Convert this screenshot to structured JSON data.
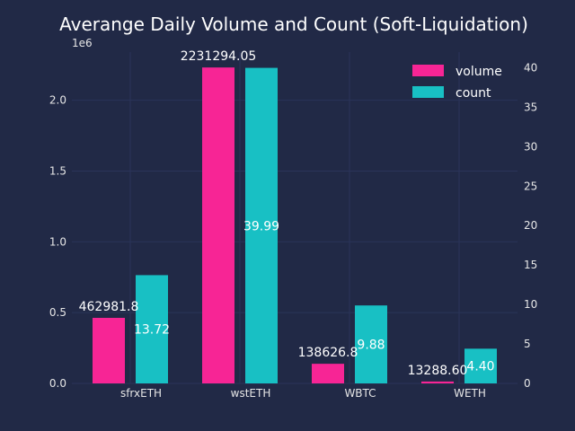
{
  "chart_data": {
    "type": "bar",
    "title": "Averange Daily Volume and Count (Soft-Liquidation)",
    "categories": [
      "sfrxETH",
      "wstETH",
      "WBTC",
      "WETH"
    ],
    "series": [
      {
        "name": "volume",
        "axis": "left",
        "color": "#F72595",
        "values": [
          462981.8,
          2231294.05,
          138626.8,
          13288.6
        ],
        "labels": [
          "462981.8",
          "2231294.05",
          "138626.8",
          "13288.60"
        ]
      },
      {
        "name": "count",
        "axis": "right",
        "color": "#18C0C4",
        "values": [
          13.72,
          39.99,
          9.88,
          4.4
        ],
        "labels": [
          "13.72",
          "39.99",
          "9.88",
          "4.40"
        ]
      }
    ],
    "y_left": {
      "ylim": [
        0,
        2340000
      ],
      "ticks": [
        0,
        500000,
        1000000,
        1500000,
        2000000
      ],
      "tick_labels": [
        "0.0",
        "0.5",
        "1.0",
        "1.5",
        "2.0"
      ],
      "offset_label": "1e6"
    },
    "y_right": {
      "ylim": [
        0,
        41.99
      ],
      "ticks": [
        0,
        5,
        10,
        15,
        20,
        25,
        30,
        35,
        40
      ],
      "tick_labels": [
        "0",
        "5",
        "10",
        "15",
        "20",
        "25",
        "30",
        "35",
        "40"
      ]
    },
    "grid": true,
    "legend": "top-right",
    "colors": {
      "background": "#212946",
      "grid": "#2A3459",
      "text": "#FFFFFF",
      "tick_text": "#E6E6E6"
    }
  }
}
